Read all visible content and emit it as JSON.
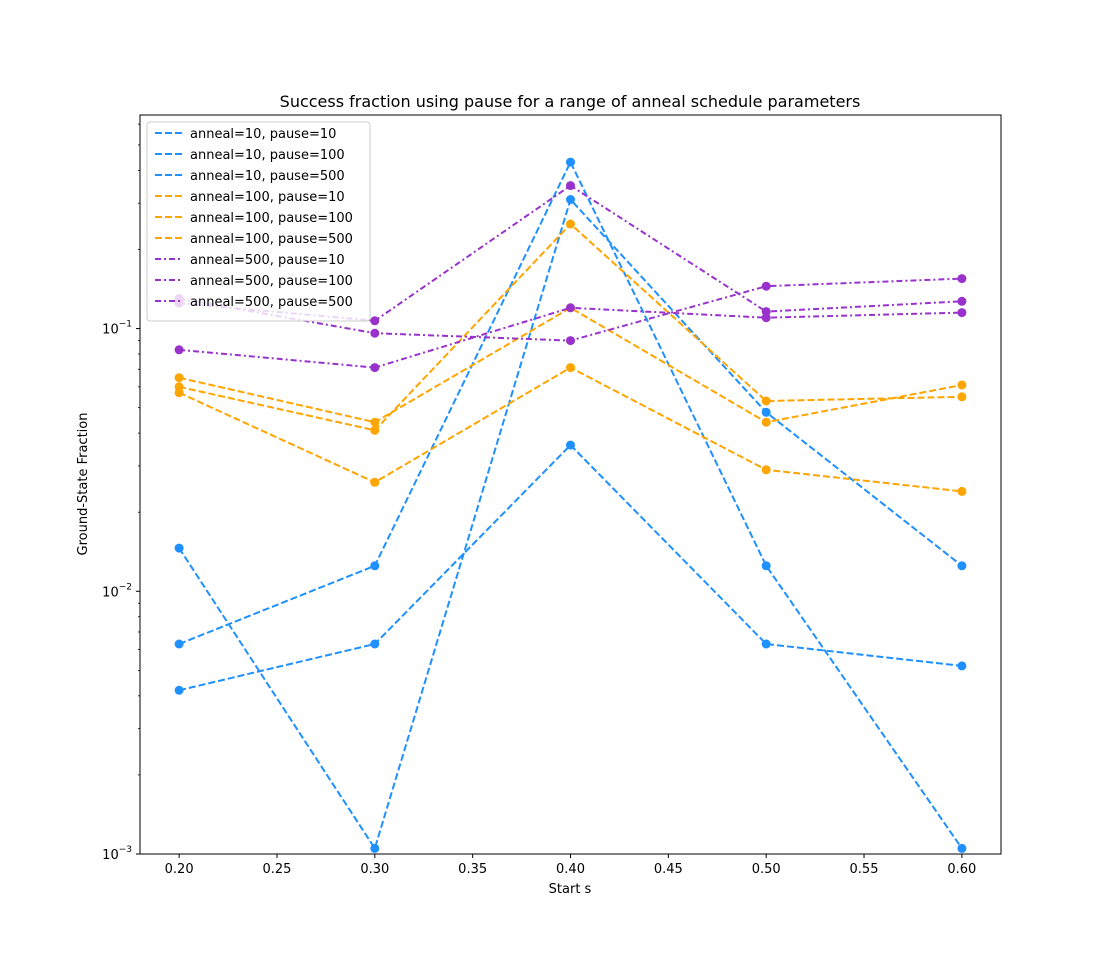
{
  "chart_data": {
    "type": "line",
    "title": "Success fraction using pause for a range of anneal schedule parameters",
    "xlabel": "Start s",
    "ylabel": "Ground-State Fraction",
    "xlim": [
      0.18,
      0.62
    ],
    "ylim": [
      0.001,
      0.65
    ],
    "yscale": "log",
    "grid": false,
    "legend_position": "top-left",
    "x_ticks": [
      0.2,
      0.25,
      0.3,
      0.35,
      0.4,
      0.45,
      0.5,
      0.55,
      0.6
    ],
    "x_tick_labels": [
      "0.20",
      "0.25",
      "0.30",
      "0.35",
      "0.40",
      "0.45",
      "0.50",
      "0.55",
      "0.60"
    ],
    "y_ticks": [
      {
        "value": 0.001,
        "base": "10",
        "exp": "−3"
      },
      {
        "value": 0.01,
        "base": "10",
        "exp": "−2"
      },
      {
        "value": 0.1,
        "base": "10",
        "exp": "−1"
      }
    ],
    "x": [
      0.2,
      0.3,
      0.4,
      0.5,
      0.6
    ],
    "series": [
      {
        "name": "anneal=10, pause=10",
        "color": "#1e90ff",
        "dash": "dashed",
        "values": [
          0.0042,
          0.0063,
          0.036,
          0.0063,
          0.0052
        ]
      },
      {
        "name": "anneal=10, pause=100",
        "color": "#1e90ff",
        "dash": "dashed",
        "values": [
          0.0063,
          0.0125,
          0.43,
          0.0125,
          0.00105
        ]
      },
      {
        "name": "anneal=10, pause=500",
        "color": "#1e90ff",
        "dash": "dashed",
        "values": [
          0.0146,
          0.00105,
          0.31,
          0.048,
          0.0125
        ]
      },
      {
        "name": "anneal=100, pause=10",
        "color": "#ffa500",
        "dash": "dashed",
        "values": [
          0.057,
          0.026,
          0.071,
          0.029,
          0.024
        ]
      },
      {
        "name": "anneal=100, pause=100",
        "color": "#ffa500",
        "dash": "dashed",
        "values": [
          0.065,
          0.044,
          0.12,
          0.044,
          0.061
        ]
      },
      {
        "name": "anneal=100, pause=500",
        "color": "#ffa500",
        "dash": "dashed",
        "values": [
          0.06,
          0.041,
          0.25,
          0.053,
          0.055
        ]
      },
      {
        "name": "anneal=500, pause=10",
        "color": "#9932cc",
        "dash": "dashdot",
        "values": [
          0.083,
          0.071,
          0.12,
          0.11,
          0.115
        ]
      },
      {
        "name": "anneal=500, pause=100",
        "color": "#9932cc",
        "dash": "dashdot",
        "values": [
          0.13,
          0.096,
          0.09,
          0.145,
          0.155
        ]
      },
      {
        "name": "anneal=500, pause=500",
        "color": "#9932cc",
        "dash": "dashdot",
        "values": [
          0.125,
          0.107,
          0.35,
          0.116,
          0.127
        ]
      }
    ]
  }
}
